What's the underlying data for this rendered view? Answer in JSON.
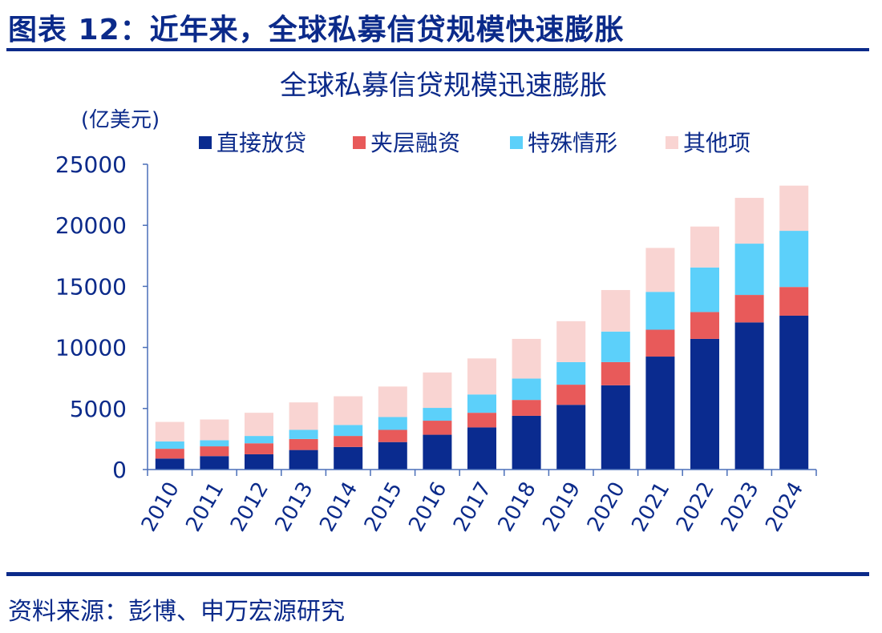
{
  "figure_title": "图表 12：近年来，全球私募信贷规模快速膨胀",
  "source": "资料来源：彭博、申万宏源研究",
  "chart_data": {
    "type": "bar",
    "stacked": true,
    "title": "全球私募信贷规模迅速膨胀",
    "unit_label": "(亿美元)",
    "xlabel": "",
    "ylabel": "(亿美元)",
    "ylim": [
      0,
      25000
    ],
    "yticks": [
      0,
      5000,
      10000,
      15000,
      20000,
      25000
    ],
    "grid": false,
    "legend_position": "top",
    "categories": [
      "2010",
      "2011",
      "2012",
      "2013",
      "2014",
      "2015",
      "2016",
      "2017",
      "2018",
      "2019",
      "2020",
      "2021",
      "2022",
      "2023",
      "2024"
    ],
    "series": [
      {
        "name": "直接放贷",
        "color": "#0a2b8f",
        "values": [
          900,
          1100,
          1250,
          1600,
          1850,
          2250,
          2850,
          3450,
          4400,
          5300,
          6900,
          9250,
          10700,
          12050,
          12600
        ]
      },
      {
        "name": "夹层融资",
        "color": "#e85a5a",
        "values": [
          800,
          800,
          900,
          900,
          900,
          1000,
          1150,
          1200,
          1300,
          1650,
          1900,
          2200,
          2200,
          2250,
          2350
        ]
      },
      {
        "name": "特殊情形",
        "color": "#5cd0fa",
        "values": [
          600,
          500,
          600,
          750,
          900,
          1050,
          1050,
          1500,
          1750,
          1850,
          2500,
          3100,
          3650,
          4200,
          4600
        ]
      },
      {
        "name": "其他项",
        "color": "#f9d4d2",
        "values": [
          1600,
          1700,
          1900,
          2250,
          2350,
          2500,
          2900,
          2950,
          3250,
          3350,
          3400,
          3600,
          3350,
          3750,
          3700
        ]
      }
    ]
  }
}
